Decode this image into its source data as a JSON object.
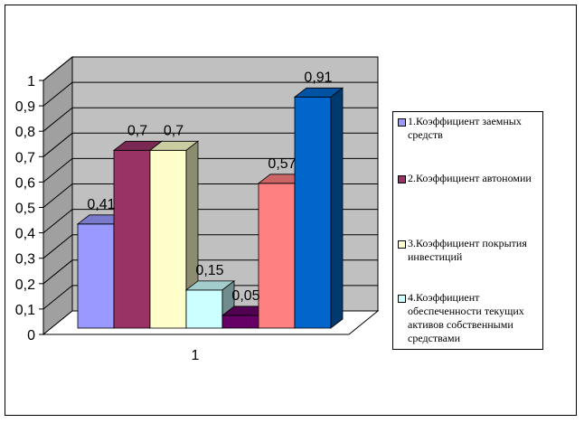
{
  "chart_data": {
    "type": "bar",
    "style": "3d-clustered-column",
    "categories": [
      "1"
    ],
    "ylim": [
      0,
      1
    ],
    "yticks": [
      "0",
      "0,1",
      "0,2",
      "0,3",
      "0,4",
      "0,5",
      "0,6",
      "0,7",
      "0,8",
      "0,9",
      "1"
    ],
    "grid": true,
    "legend_position": "right",
    "series": [
      {
        "name": "1.Коэффициент заемных средств",
        "value": 0.41,
        "label": "0,41",
        "color": "#9999ff"
      },
      {
        "name": "2.Коэффициент автономии",
        "value": 0.7,
        "label": "0,7",
        "color": "#993366"
      },
      {
        "name": "3.Коэффициент покрытия инвестиций",
        "value": 0.7,
        "label": "0,7",
        "color": "#ffffcc"
      },
      {
        "name": "4.Коэффициент обеспеченности текущих активов собственными средствами",
        "value": 0.15,
        "label": "0,15",
        "color": "#ccffff"
      },
      {
        "name": "",
        "value": 0.05,
        "label": "0,05",
        "color": "#660066"
      },
      {
        "name": "",
        "value": 0.57,
        "label": "0,57",
        "color": "#ff8080"
      },
      {
        "name": "",
        "value": 0.91,
        "label": "0,91",
        "color": "#0066cc"
      }
    ]
  }
}
